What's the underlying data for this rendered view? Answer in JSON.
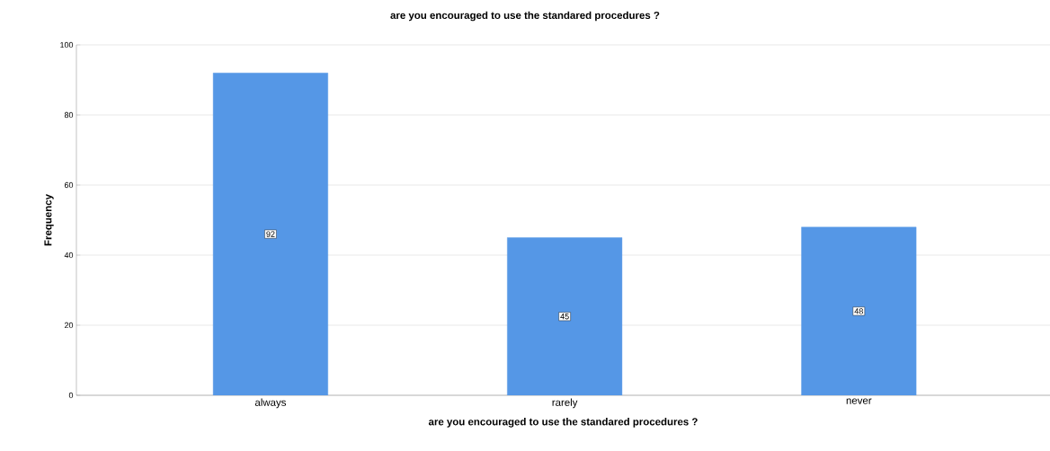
{
  "chart_data": {
    "type": "bar",
    "title": "are  you encouraged to use the standared procedures ?",
    "xlabel": "are  you encouraged to use the standared procedures ?",
    "ylabel": "Frequency",
    "categories": [
      "always",
      "rarely",
      "never"
    ],
    "values": [
      92,
      45,
      48
    ],
    "color": "#5597e6",
    "ylim": [
      0,
      100
    ],
    "yticks": [
      0,
      20,
      40,
      60,
      80,
      100
    ],
    "grid": "y",
    "data_labels": true
  }
}
